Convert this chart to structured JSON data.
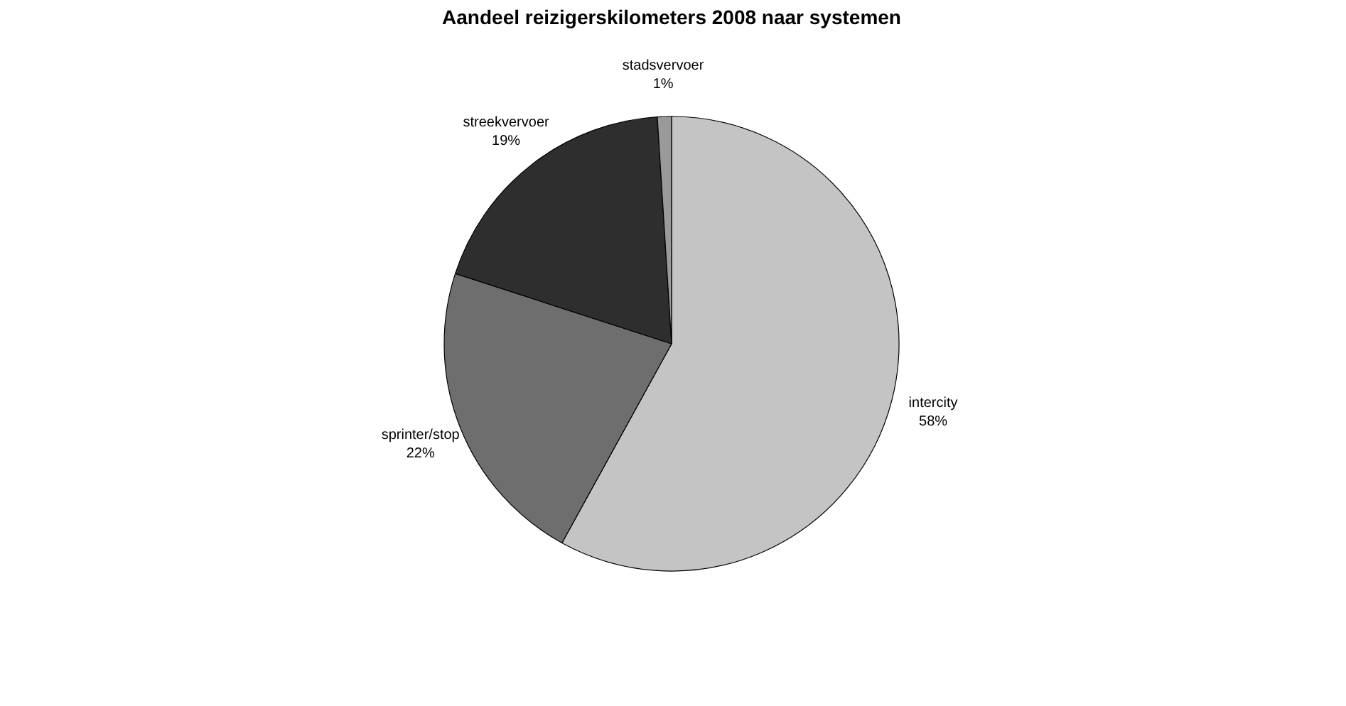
{
  "chart_data": {
    "type": "pie",
    "title": "Aandeel reizigerskilometers 2008 naar systemen",
    "categories": [
      "intercity",
      "sprinter/stop",
      "streekvervoer",
      "stadsvervoer"
    ],
    "values": [
      58,
      22,
      19,
      1
    ],
    "colors": [
      "#c4c4c4",
      "#6e6e6e",
      "#2e2e2e",
      "#9a9a9a"
    ],
    "value_labels": [
      "58%",
      "22%",
      "19%",
      "1%"
    ],
    "legend": false
  }
}
